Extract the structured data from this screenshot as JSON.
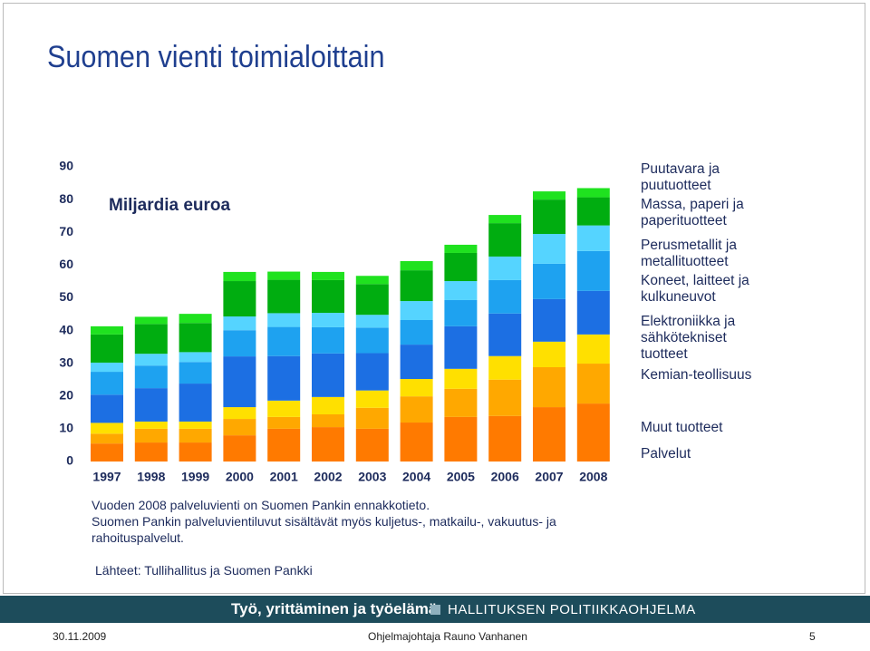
{
  "chart_data": {
    "type": "stacked-bar",
    "title": "Suomen vienti toimialoittain",
    "unit_label": "Miljardia euroa",
    "categories": [
      "1997",
      "1998",
      "1999",
      "2000",
      "2001",
      "2002",
      "2003",
      "2004",
      "2005",
      "2006",
      "2007",
      "2008"
    ],
    "series": [
      {
        "name": "Palvelut",
        "color": "#ff7a00",
        "values": [
          5.5,
          5.8,
          5.8,
          8.0,
          10.0,
          10.5,
          10.0,
          11.9,
          13.6,
          13.9,
          16.6,
          17.7
        ]
      },
      {
        "name": "Muut tuotteet",
        "color": "#ffa800",
        "values": [
          3.0,
          4.2,
          4.2,
          5.0,
          3.6,
          3.9,
          6.4,
          8.0,
          8.6,
          11.1,
          12.2,
          12.2
        ]
      },
      {
        "name": "Kemian-teollisuus",
        "color": "#ffe000",
        "values": [
          3.3,
          2.2,
          2.2,
          3.6,
          5.0,
          5.3,
          5.3,
          5.3,
          6.1,
          7.2,
          7.8,
          8.9
        ]
      },
      {
        "name": "Elektroniikka ja sähkötekniset tuotteet",
        "color": "#1c6fe3",
        "values": [
          8.6,
          10.2,
          11.6,
          15.5,
          13.6,
          13.3,
          11.4,
          10.5,
          13.0,
          13.0,
          13.0,
          13.3
        ]
      },
      {
        "name": "Koneet, laitteet ja kulkuneuvot",
        "color": "#1ea2f0",
        "values": [
          7.0,
          6.9,
          6.6,
          8.0,
          8.9,
          8.0,
          7.8,
          7.5,
          8.0,
          10.2,
          10.8,
          12.2
        ]
      },
      {
        "name": "Perusmetallit ja metallituotteet",
        "color": "#55d4ff",
        "values": [
          2.8,
          3.6,
          3.0,
          4.2,
          4.2,
          4.4,
          3.9,
          5.8,
          5.8,
          7.2,
          9.1,
          7.8
        ]
      },
      {
        "name": "Massa, paperi ja paperituotteet",
        "color": "#00ad10",
        "values": [
          8.6,
          9.1,
          8.9,
          10.8,
          10.2,
          10.0,
          9.4,
          9.4,
          8.6,
          10.2,
          10.5,
          8.6
        ]
      },
      {
        "name": "Puutavara ja puutuotteet",
        "color": "#1fe21f",
        "values": [
          2.5,
          2.2,
          2.8,
          2.8,
          2.5,
          2.5,
          2.5,
          2.8,
          2.5,
          2.5,
          2.5,
          2.8
        ]
      }
    ],
    "ylim": [
      0,
      90
    ],
    "yticks": [
      0,
      10,
      20,
      30,
      40,
      50,
      60,
      70,
      80,
      90
    ],
    "grid": false
  },
  "notes": [
    "Vuoden 2008 palveluvienti on Suomen Pankin ennakkotieto.",
    "Suomen Pankin palveluvientiluvut sisältävät myös kuljetus-, matkailu-, vakuutus- ja rahoituspalvelut."
  ],
  "source": "Lähteet: Tullihallitus ja Suomen Pankki",
  "footer": {
    "slogan": "Työ, yrittäminen ja työelämä",
    "program": "HALLITUKSEN POLITIIKKAOHJELMA",
    "date": "30.11.2009",
    "author": "Ohjelmajohtaja Rauno Vanhanen",
    "page": "5"
  }
}
